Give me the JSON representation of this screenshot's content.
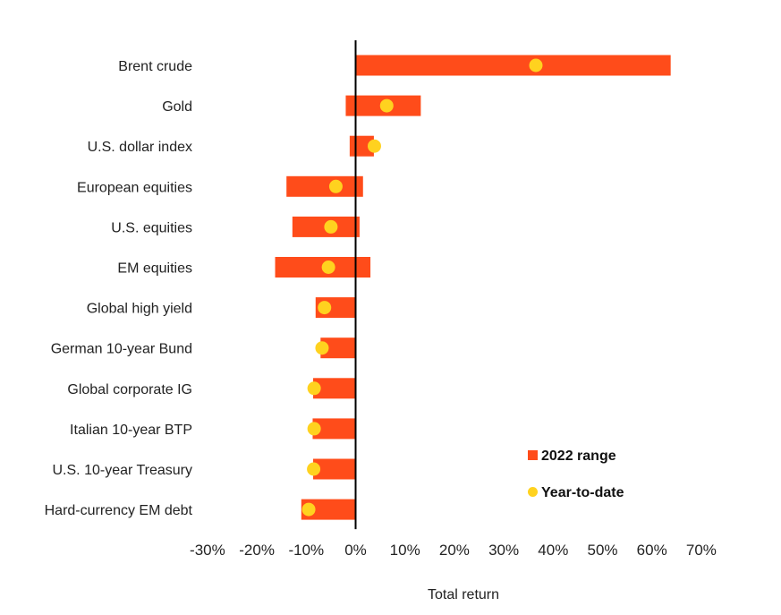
{
  "chart_data": {
    "type": "bar",
    "orientation": "horizontal",
    "xlabel": "Total return",
    "xlim": [
      -30,
      70
    ],
    "xticks": [
      "-30%",
      "-20%",
      "-10%",
      "0%",
      "10%",
      "20%",
      "30%",
      "40%",
      "50%",
      "60%",
      "70%"
    ],
    "grid": false,
    "legend_position": "bottom-right",
    "categories": [
      "Brent crude",
      "Gold",
      "U.S. dollar index",
      "European equities",
      "U.S. equities",
      "EM equities",
      "Global high yield",
      "German 10-year Bund",
      "Global corporate IG",
      "Italian 10-year BTP",
      "U.S. 10-year Treasury",
      "Hard-currency EM debt"
    ],
    "series": [
      {
        "name": "2022 range",
        "type": "range-bar",
        "color": "#ff4c1a",
        "low": [
          0,
          -2,
          -1.2,
          -14,
          -12.8,
          -16.3,
          -8.1,
          -7.1,
          -8.6,
          -8.7,
          -8.6,
          -11
        ],
        "high": [
          63.8,
          13.2,
          3.7,
          1.5,
          0.8,
          3,
          0,
          0,
          0,
          0,
          0,
          0
        ]
      },
      {
        "name": "Year-to-date",
        "type": "point",
        "color": "#ffd21f",
        "values": [
          36.5,
          6.3,
          3.8,
          -4,
          -5,
          -5.5,
          -6.3,
          -6.8,
          -8.4,
          -8.4,
          -8.5,
          -9.5
        ]
      }
    ]
  }
}
